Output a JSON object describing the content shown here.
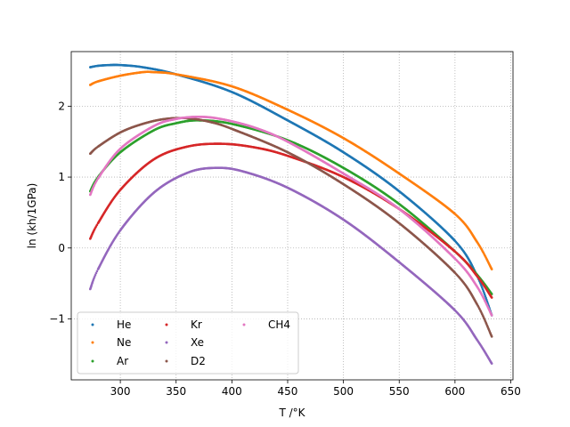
{
  "chart_data": {
    "type": "scatter",
    "title": "",
    "xlabel": "T /°K",
    "ylabel": "ln (kh/1GPa)",
    "xlim": [
      256,
      652
    ],
    "ylim": [
      -1.86,
      2.77
    ],
    "x_ticks": [
      300,
      350,
      400,
      450,
      500,
      550,
      600,
      650
    ],
    "y_ticks": [
      -1,
      0,
      1,
      2
    ],
    "x_tick_labels": [
      "300",
      "350",
      "400",
      "450",
      "500",
      "550",
      "600",
      "650"
    ],
    "y_tick_labels": [
      "−1",
      "0",
      "1",
      "2"
    ],
    "grid": true,
    "legend": {
      "placement": "lower-left",
      "columns": 3
    },
    "series": [
      {
        "name": "He",
        "color": "#1f77b4",
        "x": [
          273,
          280,
          290,
          300,
          320,
          350,
          400,
          450,
          500,
          550,
          600,
          620,
          633
        ],
        "y": [
          2.55,
          2.57,
          2.58,
          2.58,
          2.55,
          2.45,
          2.2,
          1.8,
          1.35,
          0.8,
          0.1,
          -0.4,
          -0.95
        ]
      },
      {
        "name": "Ne",
        "color": "#ff7f0e",
        "x": [
          273,
          280,
          300,
          320,
          330,
          350,
          400,
          450,
          500,
          550,
          600,
          620,
          633
        ],
        "y": [
          2.3,
          2.35,
          2.43,
          2.48,
          2.48,
          2.45,
          2.28,
          1.95,
          1.55,
          1.05,
          0.48,
          0.08,
          -0.3
        ]
      },
      {
        "name": "Ar",
        "color": "#2ca02c",
        "x": [
          273,
          280,
          300,
          330,
          350,
          370,
          400,
          450,
          500,
          550,
          600,
          620,
          633
        ],
        "y": [
          0.8,
          1.0,
          1.35,
          1.66,
          1.76,
          1.8,
          1.75,
          1.52,
          1.13,
          0.62,
          -0.05,
          -0.38,
          -0.65
        ]
      },
      {
        "name": "Kr",
        "color": "#d62728",
        "x": [
          273,
          280,
          300,
          330,
          360,
          390,
          420,
          450,
          500,
          550,
          600,
          620,
          633
        ],
        "y": [
          0.13,
          0.35,
          0.82,
          1.25,
          1.43,
          1.47,
          1.42,
          1.3,
          1.0,
          0.55,
          -0.05,
          -0.4,
          -0.7
        ]
      },
      {
        "name": "Xe",
        "color": "#9467bd",
        "x": [
          273,
          280,
          300,
          330,
          360,
          385,
          410,
          450,
          500,
          550,
          600,
          620,
          633
        ],
        "y": [
          -0.58,
          -0.3,
          0.25,
          0.78,
          1.06,
          1.13,
          1.08,
          0.85,
          0.4,
          -0.2,
          -0.88,
          -1.3,
          -1.63
        ]
      },
      {
        "name": "D2",
        "color": "#8c564b",
        "x": [
          273,
          280,
          300,
          320,
          340,
          360,
          380,
          400,
          450,
          500,
          550,
          600,
          620,
          633
        ],
        "y": [
          1.33,
          1.43,
          1.63,
          1.75,
          1.82,
          1.83,
          1.78,
          1.68,
          1.35,
          0.9,
          0.35,
          -0.35,
          -0.8,
          -1.25
        ]
      },
      {
        "name": "CH4",
        "color": "#e377c2",
        "x": [
          273,
          280,
          300,
          330,
          350,
          370,
          390,
          420,
          450,
          500,
          550,
          600,
          620,
          633
        ],
        "y": [
          0.75,
          0.98,
          1.4,
          1.72,
          1.82,
          1.85,
          1.82,
          1.7,
          1.5,
          1.05,
          0.55,
          -0.15,
          -0.55,
          -0.95
        ]
      }
    ]
  }
}
